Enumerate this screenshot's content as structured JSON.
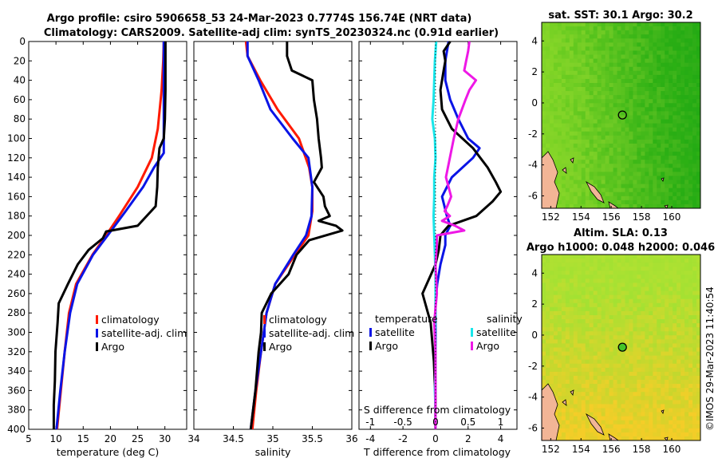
{
  "title": {
    "line1": "Argo profile: csiro 5906658_53 24-Mar-2023 0.7774S 156.74E (NRT data)",
    "line2": "Climatology: CARS2009. Satellite-adj clim: synTS_20230324.nc (0.91d earlier)"
  },
  "colors": {
    "climatology": "#ff1a00",
    "satellite": "#0a14e6",
    "argo": "#000000",
    "s_sat": "#18e6ea",
    "s_argo": "#ee18e6",
    "land": "#f2b596"
  },
  "chart_data": [
    {
      "type": "line",
      "name": "temperature",
      "xlabel": "temperature (deg C)",
      "xlim": [
        5,
        34
      ],
      "ylim": [
        400,
        0
      ],
      "xticks": [
        "5",
        "10",
        "15",
        "20",
        "25",
        "30"
      ],
      "yticks": [
        "0",
        "20",
        "40",
        "60",
        "80",
        "100",
        "120",
        "140",
        "160",
        "180",
        "200",
        "220",
        "240",
        "260",
        "280",
        "300",
        "320",
        "340",
        "360",
        "380",
        "400"
      ],
      "legend": [
        "climatology",
        "satellite-adj. clim",
        "Argo"
      ],
      "series": [
        {
          "name": "climatology",
          "depth": [
            0,
            20,
            50,
            90,
            120,
            150,
            180,
            200,
            220,
            250,
            280,
            320,
            360,
            400
          ],
          "values": [
            29.8,
            29.7,
            29.4,
            28.7,
            27.6,
            25.0,
            21.6,
            19.2,
            16.7,
            13.7,
            12.4,
            11.6,
            10.9,
            10.2
          ]
        },
        {
          "name": "satellite-adj. clim",
          "depth": [
            0,
            20,
            50,
            90,
            115,
            130,
            150,
            175,
            200,
            220,
            250,
            280,
            320,
            360,
            400
          ],
          "values": [
            29.8,
            29.8,
            29.8,
            29.8,
            29.8,
            28.0,
            26.0,
            22.8,
            19.5,
            16.8,
            13.9,
            12.6,
            11.6,
            10.8,
            10.1
          ]
        },
        {
          "name": "Argo",
          "depth": [
            0,
            20,
            50,
            80,
            100,
            110,
            130,
            150,
            170,
            190,
            196,
            203,
            215,
            230,
            250,
            270,
            290,
            320,
            350,
            375,
            400
          ],
          "values": [
            30.1,
            30.1,
            30.1,
            30.0,
            29.8,
            29.0,
            28.7,
            28.6,
            28.3,
            25.0,
            19.2,
            18.6,
            16.0,
            14.0,
            12.2,
            10.5,
            10.3,
            9.9,
            9.8,
            9.6,
            9.6
          ]
        }
      ]
    },
    {
      "type": "line",
      "name": "salinity",
      "xlabel": "salinity",
      "xlim": [
        34,
        36
      ],
      "ylim": [
        400,
        0
      ],
      "xticks": [
        "34",
        "34.5",
        "35",
        "35.5",
        "36"
      ],
      "legend": [
        "climatology",
        "satellite-adj. clim",
        "Argo"
      ],
      "series": [
        {
          "name": "climatology",
          "depth": [
            0,
            15,
            40,
            70,
            100,
            130,
            150,
            175,
            200,
            220,
            250,
            280,
            320,
            360,
            400
          ],
          "values": [
            34.66,
            34.68,
            34.84,
            35.06,
            35.33,
            35.46,
            35.5,
            35.5,
            35.45,
            35.28,
            35.03,
            34.92,
            34.85,
            34.79,
            34.74
          ]
        },
        {
          "name": "satellite-adj. clim",
          "depth": [
            0,
            15,
            40,
            70,
            100,
            120,
            150,
            180,
            200,
            220,
            250,
            280,
            320,
            360,
            400
          ],
          "values": [
            34.68,
            34.68,
            34.82,
            34.97,
            35.25,
            35.45,
            35.5,
            35.49,
            35.42,
            35.26,
            35.03,
            34.92,
            34.85,
            34.78,
            34.72
          ]
        },
        {
          "name": "Argo",
          "depth": [
            0,
            10,
            15,
            20,
            30,
            40,
            60,
            80,
            100,
            120,
            130,
            145,
            160,
            170,
            180,
            185,
            190,
            195,
            205,
            220,
            240,
            260,
            280,
            300,
            320,
            360,
            400
          ],
          "values": [
            35.18,
            35.18,
            35.18,
            35.2,
            35.24,
            35.5,
            35.52,
            35.56,
            35.58,
            35.61,
            35.62,
            35.52,
            35.64,
            35.66,
            35.72,
            35.58,
            35.8,
            35.88,
            35.46,
            35.3,
            35.2,
            34.98,
            34.86,
            34.85,
            34.82,
            34.78,
            34.72
          ]
        }
      ]
    },
    {
      "type": "line",
      "name": "difference",
      "xlabel": "T difference from climatology",
      "xlabel_top": "S difference from climatology",
      "xlim": [
        -4.7,
        5
      ],
      "ylim": [
        400,
        0
      ],
      "xticks": [
        "-4",
        "-2",
        "0",
        "2",
        "4"
      ],
      "xticks_top": [
        "-1",
        "-0.5",
        "0",
        "0.5",
        "1"
      ],
      "legend_t_heading": "temperature",
      "legend_s_heading": "salinity",
      "legend_t": [
        "satellite",
        "Argo"
      ],
      "legend_s": [
        "satellite",
        "Argo"
      ],
      "series": [
        {
          "name": "T satellite",
          "depth": [
            0,
            20,
            40,
            60,
            80,
            100,
            110,
            120,
            140,
            160,
            180,
            190,
            200,
            210,
            230,
            250,
            270,
            300,
            340,
            380,
            400
          ],
          "values": [
            0.8,
            0.6,
            0.6,
            0.9,
            1.4,
            2.0,
            2.7,
            2.3,
            1.0,
            0.4,
            0.7,
            0.9,
            0.6,
            0.6,
            0.3,
            0.1,
            0.0,
            0.0,
            0.0,
            0.0,
            0.0
          ]
        },
        {
          "name": "T Argo",
          "depth": [
            0,
            10,
            20,
            30,
            50,
            70,
            90,
            110,
            130,
            145,
            155,
            165,
            180,
            190,
            196,
            200,
            215,
            230,
            260,
            290,
            330,
            370,
            400
          ],
          "values": [
            0.9,
            0.5,
            0.6,
            0.5,
            0.3,
            0.4,
            1.0,
            2.3,
            3.2,
            3.7,
            4.0,
            3.5,
            2.5,
            0.8,
            0.5,
            0.3,
            0.2,
            0.0,
            -0.8,
            -0.3,
            -0.1,
            0.0,
            0.0
          ]
        },
        {
          "name": "S satellite",
          "depth": [
            0,
            20,
            40,
            60,
            80,
            100,
            120,
            140,
            160,
            180,
            200,
            220,
            240,
            260,
            280,
            300,
            320,
            340,
            360,
            380,
            400
          ],
          "values": [
            0.01,
            -0.01,
            -0.02,
            -0.03,
            -0.05,
            -0.01,
            0.0,
            -0.02,
            -0.02,
            -0.03,
            -0.02,
            -0.01,
            0.0,
            0.0,
            0.0,
            -0.01,
            0.0,
            0.0,
            -0.01,
            0.0,
            0.0
          ]
        },
        {
          "name": "S Argo",
          "depth": [
            0,
            10,
            20,
            30,
            40,
            50,
            60,
            80,
            100,
            120,
            140,
            160,
            170,
            175,
            180,
            185,
            190,
            195,
            200,
            210,
            230,
            260,
            290,
            320,
            350,
            380,
            400
          ],
          "values": [
            0.52,
            0.5,
            0.47,
            0.44,
            0.62,
            0.52,
            0.46,
            0.35,
            0.28,
            0.22,
            0.16,
            0.24,
            0.18,
            0.14,
            0.22,
            0.1,
            0.3,
            0.44,
            0.02,
            0.02,
            0.0,
            0.02,
            -0.02,
            0.0,
            0.0,
            0.0,
            0.0
          ]
        }
      ]
    },
    {
      "type": "heatmap",
      "name": "sst-map",
      "title": "sat. SST: 30.1 Argo: 30.2",
      "xlim": [
        151.4,
        161.9
      ],
      "ylim": [
        -6.8,
        5.2
      ],
      "xticks": [
        "152",
        "154",
        "156",
        "158",
        "160"
      ],
      "yticks": [
        "4",
        "2",
        "0",
        "-2",
        "-4",
        "-6"
      ],
      "argo_position": {
        "lon": 156.74,
        "lat": -0.7774
      }
    },
    {
      "type": "heatmap",
      "name": "sla-map",
      "title": "Altim. SLA: 0.13",
      "subtitle": "Argo h1000: 0.048 h2000: 0.046",
      "xlim": [
        151.4,
        161.9
      ],
      "ylim": [
        -6.8,
        5.2
      ],
      "xticks": [
        "152",
        "154",
        "156",
        "158",
        "160"
      ],
      "yticks": [
        "4",
        "2",
        "0",
        "-2",
        "-4",
        "-6"
      ],
      "argo_position": {
        "lon": 156.74,
        "lat": -0.7774
      }
    }
  ],
  "footer": "©IMOS 29-Mar-2023 11:40:54"
}
